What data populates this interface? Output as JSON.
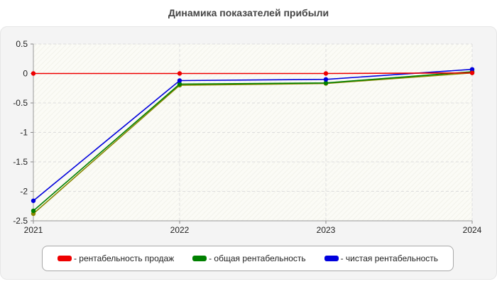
{
  "chart_data": {
    "type": "line",
    "title": "Динамика показателей прибыли",
    "x": [
      "2021",
      "2022",
      "2023",
      "2024"
    ],
    "ylim": [
      -2.5,
      0.5
    ],
    "yticks": [
      "0.5",
      "0",
      "-0.5",
      "-1",
      "-1.5",
      "-2",
      "-2.5"
    ],
    "grid": true,
    "legend_position": "bottom",
    "series": [
      {
        "name": "- рентабельность продаж",
        "color": "#ee0000",
        "values": [
          0,
          0,
          0,
          0.01
        ]
      },
      {
        "name": "- общая рентабельность",
        "color": "#008000",
        "values": [
          -2.33,
          -0.18,
          -0.16,
          0.03
        ]
      },
      {
        "name": "- чистая рентабельность",
        "color": "#0000dd",
        "values": [
          -2.16,
          -0.12,
          -0.1,
          0.07
        ]
      }
    ],
    "extra_series_color": "#888800",
    "extra_series_values": [
      -2.38,
      -0.2,
      -0.17,
      0.01
    ]
  }
}
